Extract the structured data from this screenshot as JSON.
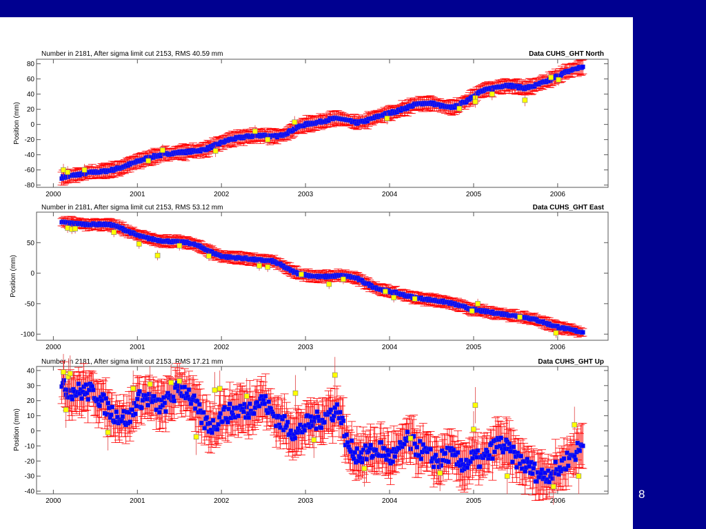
{
  "slide": {
    "page_number": "8",
    "background_color": "#000090"
  },
  "chart_data": [
    {
      "type": "scatter",
      "subtitle": "Number in   2181, After sigma limit cut   2153, RMS   40.59 mm",
      "title": "Data CUHS_GHT North",
      "ylabel": "Position (mm)",
      "xlabel": "",
      "xlim": [
        1999.8,
        2006.6
      ],
      "ylim": [
        -83,
        86
      ],
      "xticks": [
        "2000",
        "2001",
        "2002",
        "2003",
        "2004",
        "2005",
        "2006"
      ],
      "yticks": [
        "80",
        "60",
        "40",
        "20",
        "0",
        "-20",
        "-40",
        "-60",
        "-80"
      ],
      "grid": false,
      "x_start": 2000.1,
      "x_step": 0.1,
      "values": [
        -70,
        -68,
        -66,
        -64,
        -63,
        -62,
        -60,
        -57,
        -53,
        -49,
        -45,
        -42,
        -40,
        -38,
        -37,
        -36,
        -35,
        -33,
        -29,
        -24,
        -20,
        -18,
        -16,
        -15,
        -14,
        -16,
        -15,
        -10,
        -4,
        0,
        2,
        4,
        7,
        8,
        5,
        2,
        4,
        8,
        12,
        15,
        18,
        22,
        26,
        28,
        28,
        25,
        22,
        24,
        30,
        38,
        44,
        47,
        50,
        52,
        50,
        48,
        50,
        54,
        58,
        64,
        69,
        73,
        76
      ],
      "sigma": 8,
      "outliers": [
        [
          2000.12,
          -60
        ],
        [
          2000.17,
          -63
        ],
        [
          2000.37,
          -60
        ],
        [
          2001.13,
          -48
        ],
        [
          2001.3,
          -34
        ],
        [
          2001.93,
          -35
        ],
        [
          2002.4,
          -9
        ],
        [
          2002.55,
          -20
        ],
        [
          2002.87,
          3
        ],
        [
          2003.97,
          8
        ],
        [
          2004.83,
          21
        ],
        [
          2005.02,
          35
        ],
        [
          2005.02,
          30
        ],
        [
          2005.22,
          40
        ],
        [
          2005.61,
          32
        ],
        [
          2005.92,
          62
        ],
        [
          2006.01,
          59
        ]
      ],
      "colors": {
        "error_bar": "#ff0000",
        "point": "#0000ff",
        "outlier": "#ffff00"
      }
    },
    {
      "type": "scatter",
      "subtitle": "Number in   2181, After sigma limit cut   2153, RMS   53.12 mm",
      "title": "Data CUHS_GHT East",
      "ylabel": "Position (mm)",
      "xlabel": "",
      "xlim": [
        1999.8,
        2006.6
      ],
      "ylim": [
        -110,
        100
      ],
      "xticks": [
        "2000",
        "2001",
        "2002",
        "2003",
        "2004",
        "2005",
        "2006"
      ],
      "yticks": [
        "50",
        "0",
        "-50",
        "-100"
      ],
      "grid": false,
      "x_start": 2000.1,
      "x_step": 0.1,
      "values": [
        84,
        82,
        81,
        80,
        80,
        80,
        79,
        74,
        68,
        62,
        58,
        55,
        53,
        52,
        51,
        50,
        46,
        40,
        33,
        28,
        26,
        25,
        24,
        22,
        21,
        20,
        14,
        6,
        0,
        -3,
        -5,
        -6,
        -5,
        -4,
        -5,
        -8,
        -15,
        -22,
        -27,
        -30,
        -33,
        -37,
        -40,
        -42,
        -44,
        -46,
        -48,
        -52,
        -56,
        -60,
        -62,
        -64,
        -66,
        -68,
        -70,
        -72,
        -75,
        -79,
        -84,
        -88,
        -91,
        -94,
        -97
      ],
      "sigma": 8,
      "outliers": [
        [
          2000.17,
          74
        ],
        [
          2000.22,
          72
        ],
        [
          2000.26,
          73
        ],
        [
          2000.72,
          67
        ],
        [
          2001.02,
          48
        ],
        [
          2001.24,
          29
        ],
        [
          2001.5,
          45
        ],
        [
          2001.85,
          28
        ],
        [
          2002.45,
          12
        ],
        [
          2002.55,
          10
        ],
        [
          2002.95,
          -2
        ],
        [
          2003.28,
          -18
        ],
        [
          2003.45,
          -10
        ],
        [
          2003.95,
          -30
        ],
        [
          2004.05,
          -40
        ],
        [
          2004.3,
          -42
        ],
        [
          2004.98,
          -62
        ],
        [
          2005.05,
          -50
        ],
        [
          2005.55,
          -72
        ],
        [
          2005.98,
          -98
        ]
      ],
      "colors": {
        "error_bar": "#ff0000",
        "point": "#0000ff",
        "outlier": "#ffff00"
      }
    },
    {
      "type": "scatter",
      "subtitle": "Number in   2181, After sigma limit cut   2153, RMS   17.21 mm",
      "title": "Data CUHS_GHT Up",
      "ylabel": "Position (mm)",
      "xlabel": "",
      "xlim": [
        1999.8,
        2006.6
      ],
      "ylim": [
        -41.8,
        42.7
      ],
      "xticks": [
        "2000",
        "2001",
        "2002",
        "2003",
        "2004",
        "2005",
        "2006"
      ],
      "yticks": [
        "40",
        "30",
        "20",
        "10",
        "0",
        "-10",
        "-20",
        "-30",
        "-40"
      ],
      "grid": false,
      "x_start": 2000.1,
      "x_step": 0.1,
      "values": [
        28,
        27,
        26,
        26,
        25,
        18,
        12,
        9,
        8,
        20,
        22,
        18,
        16,
        22,
        28,
        26,
        15,
        6,
        3,
        10,
        12,
        14,
        13,
        18,
        20,
        12,
        6,
        2,
        -2,
        4,
        6,
        8,
        12,
        14,
        -10,
        -15,
        -16,
        -14,
        -12,
        -18,
        -15,
        -6,
        -10,
        -14,
        -18,
        -20,
        -15,
        -20,
        -22,
        -18,
        -20,
        -14,
        -8,
        -12,
        -18,
        -22,
        -26,
        -30,
        -28,
        -26,
        -20,
        -15,
        -10
      ],
      "sigma": 12,
      "outliers": [
        [
          2000.12,
          39
        ],
        [
          2000.18,
          36
        ],
        [
          2000.2,
          38
        ],
        [
          2000.15,
          14
        ],
        [
          2000.65,
          -1
        ],
        [
          2000.95,
          28
        ],
        [
          2001.15,
          31
        ],
        [
          2001.4,
          32
        ],
        [
          2001.5,
          33
        ],
        [
          2001.7,
          -4
        ],
        [
          2001.92,
          27
        ],
        [
          2001.98,
          28
        ],
        [
          2002.3,
          23
        ],
        [
          2002.88,
          25
        ],
        [
          2003.35,
          37
        ],
        [
          2003.1,
          -6
        ],
        [
          2003.7,
          -25
        ],
        [
          2004.25,
          -5
        ],
        [
          2004.6,
          -28
        ],
        [
          2005.02,
          17
        ],
        [
          2005.0,
          1
        ],
        [
          2005.4,
          -30
        ],
        [
          2005.95,
          -37
        ],
        [
          2006.2,
          4
        ],
        [
          2006.25,
          -30
        ]
      ],
      "colors": {
        "error_bar": "#ff0000",
        "point": "#0000ff",
        "outlier": "#ffff00"
      }
    }
  ]
}
